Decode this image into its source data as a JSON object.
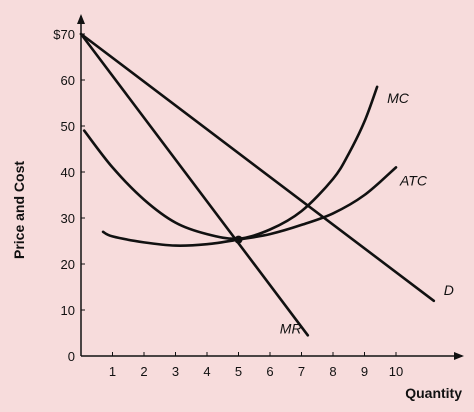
{
  "chart_data": {
    "type": "line",
    "title": "",
    "xlabel": "Quantity",
    "ylabel": "Price and Cost",
    "xlim": [
      0,
      11.5
    ],
    "ylim": [
      0,
      72
    ],
    "x_ticks": [
      "1",
      "2",
      "3",
      "4",
      "5",
      "6",
      "7",
      "8",
      "9",
      "10"
    ],
    "y_ticks": [
      "0",
      "10",
      "20",
      "30",
      "40",
      "50",
      "60",
      "$70"
    ],
    "grid": false,
    "background": "#f7dcdc",
    "line_color": "#111111",
    "series": [
      {
        "name": "D",
        "x": [
          0,
          11.2
        ],
        "y": [
          70,
          12
        ]
      },
      {
        "name": "MR",
        "x": [
          0,
          7.2
        ],
        "y": [
          70,
          4.5
        ]
      },
      {
        "name": "MC",
        "x": [
          0.1,
          1,
          2,
          3,
          4,
          5,
          6,
          7,
          8,
          8.5,
          9,
          9.4
        ],
        "y": [
          49,
          41,
          34,
          29,
          26.5,
          25.5,
          27.5,
          31.5,
          38.5,
          44,
          51,
          58.5
        ]
      },
      {
        "name": "ATC",
        "x": [
          0.7,
          1,
          2,
          3,
          4,
          5,
          6,
          7,
          8,
          9,
          10
        ],
        "y": [
          27,
          26,
          24.7,
          24,
          24.3,
          25.3,
          26.5,
          28.5,
          31,
          35,
          41
        ]
      }
    ]
  }
}
